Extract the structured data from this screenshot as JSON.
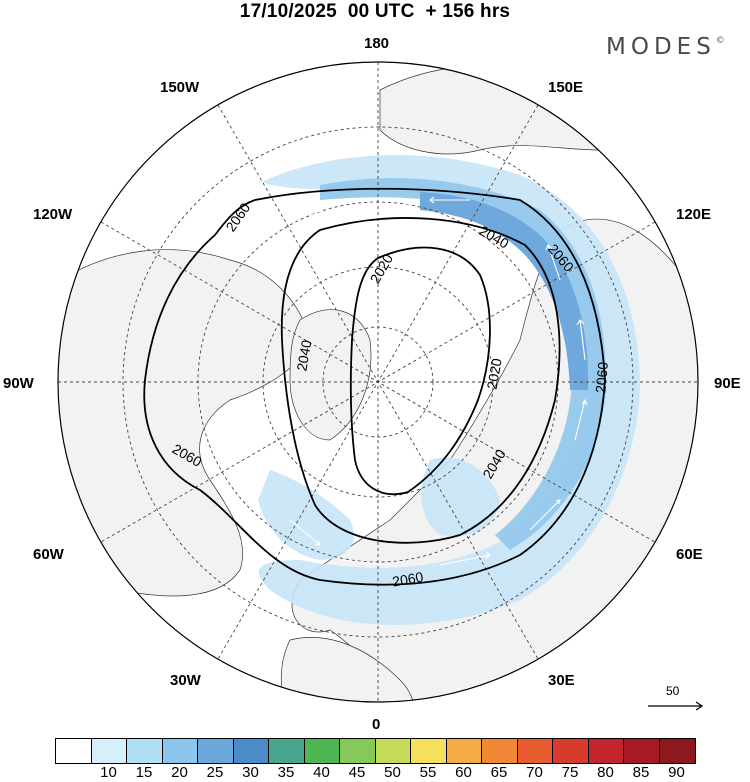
{
  "title": "17/10/2025  00 UTC  + 156 hrs",
  "brand": "MODES",
  "brand_mark": "©",
  "longitude_labels": {
    "n180": "180",
    "w150": "150W",
    "e150": "150E",
    "w120": "120W",
    "e120": "120E",
    "w90": "90W",
    "e90": "90E",
    "w60": "60W",
    "e60": "60E",
    "w30": "30W",
    "e30": "30E",
    "s0": "0"
  },
  "contour_labels": {
    "c2020a": "2020",
    "c2020b": "2020",
    "c2040a": "2040",
    "c2040b": "2040",
    "c2040c": "2040",
    "c2060a": "2060",
    "c2060b": "2060",
    "c2060c": "2060",
    "c2060d": "2060",
    "c2060e": "2060"
  },
  "wind_scale": {
    "value": "50"
  },
  "colorbar": {
    "ticks": [
      "10",
      "15",
      "20",
      "25",
      "30",
      "35",
      "40",
      "45",
      "50",
      "55",
      "60",
      "65",
      "70",
      "75",
      "80",
      "85",
      "90"
    ],
    "colors": [
      "#ffffff",
      "#d6effc",
      "#b3dff6",
      "#8cc6ec",
      "#6aa8dc",
      "#4c8cc6",
      "#4aa58f",
      "#4db853",
      "#84c95a",
      "#c5dc5a",
      "#f5df5c",
      "#f5ab48",
      "#f08838",
      "#e85c30",
      "#d83a2c",
      "#c22430",
      "#a41b24",
      "#8a1a1e"
    ]
  },
  "colors": {
    "land": "#f2f2f2",
    "jet_light": "#c6e4f7",
    "jet_mid": "#94c8ec",
    "jet_strong": "#6ea8dc"
  }
}
